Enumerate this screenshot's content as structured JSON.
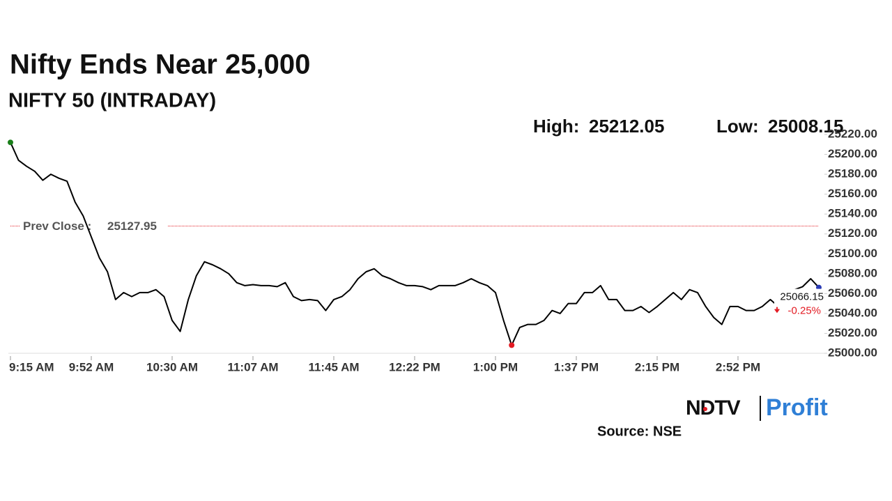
{
  "chart_data": {
    "type": "line",
    "title": "Nifty Ends Near 25,000",
    "subtitle": "NIFTY 50 (INTRADAY)",
    "high_label": "High:",
    "high": 25212.05,
    "low_label": "Low:",
    "low": 25008.15,
    "prev_close_label": "Prev Close :",
    "prev_close": 25127.95,
    "prev_close_color": "#e31b23",
    "change_label": "-0.25%",
    "change_color": "#e31b23",
    "source": "Source: NSE",
    "logo": {
      "left": "NDTV",
      "right": "Profit"
    },
    "categories": [
      "9:15 AM",
      null,
      null,
      null,
      null,
      null,
      null,
      null,
      null,
      null,
      "9:52 AM",
      null,
      null,
      null,
      null,
      null,
      null,
      null,
      null,
      null,
      "10:30 AM",
      null,
      null,
      null,
      null,
      null,
      null,
      null,
      null,
      null,
      "11:07 AM",
      null,
      null,
      null,
      null,
      null,
      null,
      null,
      null,
      null,
      "11:45 AM",
      null,
      null,
      null,
      null,
      null,
      null,
      null,
      null,
      null,
      "12:22 PM",
      null,
      null,
      null,
      null,
      null,
      null,
      null,
      null,
      null,
      "1:00 PM",
      null,
      null,
      null,
      null,
      null,
      null,
      null,
      null,
      null,
      "1:37 PM",
      null,
      null,
      null,
      null,
      null,
      null,
      null,
      null,
      null,
      "2:15 PM",
      null,
      null,
      null,
      null,
      null,
      null,
      null,
      null,
      null,
      "2:52 PM",
      null,
      null,
      null,
      null,
      null,
      null,
      null,
      null,
      null,
      null
    ],
    "series": [
      {
        "name": "NIFTY 50",
        "color": "#000000",
        "start_color": "#1a7f1a",
        "low_color": "#e31b23",
        "end_color": "#2a3bb5",
        "values": [
          25212.05,
          25194,
          25188,
          25183,
          25174,
          25180,
          25176,
          25173,
          25152,
          25138,
          25117,
          25096,
          25082,
          25054,
          25061,
          25057,
          25061,
          25061,
          25064,
          25057,
          25033,
          25022,
          25054,
          25078,
          25092,
          25089,
          25085,
          25080,
          25071,
          25068,
          25069,
          25068,
          25068,
          25067,
          25071,
          25057,
          25053,
          25054,
          25053,
          25043,
          25054,
          25057,
          25064,
          25075,
          25082,
          25085,
          25078,
          25075,
          25071,
          25068,
          25068,
          25067,
          25064,
          25068,
          25068,
          25068,
          25071,
          25075,
          25071,
          25068,
          25061,
          25033,
          25008.15,
          25026,
          25029,
          25029,
          25033,
          25043,
          25040,
          25050,
          25050,
          25061,
          25061,
          25068,
          25054,
          25054,
          25043,
          25043,
          25047,
          25041,
          25047,
          25054,
          25061,
          25054,
          25064,
          25061,
          25047,
          25036,
          25029,
          25047,
          25047,
          25043,
          25043,
          25047,
          25054,
          25047,
          25061,
          25064,
          25067,
          25075,
          25066.15
        ]
      }
    ],
    "ylim": [
      25000,
      25220
    ],
    "yticks": [
      {
        "value": 25000,
        "label": "25000.00"
      },
      {
        "value": 25020,
        "label": "25020.00"
      },
      {
        "value": 25040,
        "label": "25040.00"
      },
      {
        "value": 25060,
        "label": "25060.00"
      },
      {
        "value": 25080,
        "label": "25080.00"
      },
      {
        "value": 25100,
        "label": "25100.00"
      },
      {
        "value": 25120,
        "label": "25120.00"
      },
      {
        "value": 25140,
        "label": "25140.00"
      },
      {
        "value": 25160,
        "label": "25160.00"
      },
      {
        "value": 25180,
        "label": "25180.00"
      },
      {
        "value": 25200,
        "label": "25200.00"
      },
      {
        "value": 25220,
        "label": "25220.00"
      }
    ]
  }
}
